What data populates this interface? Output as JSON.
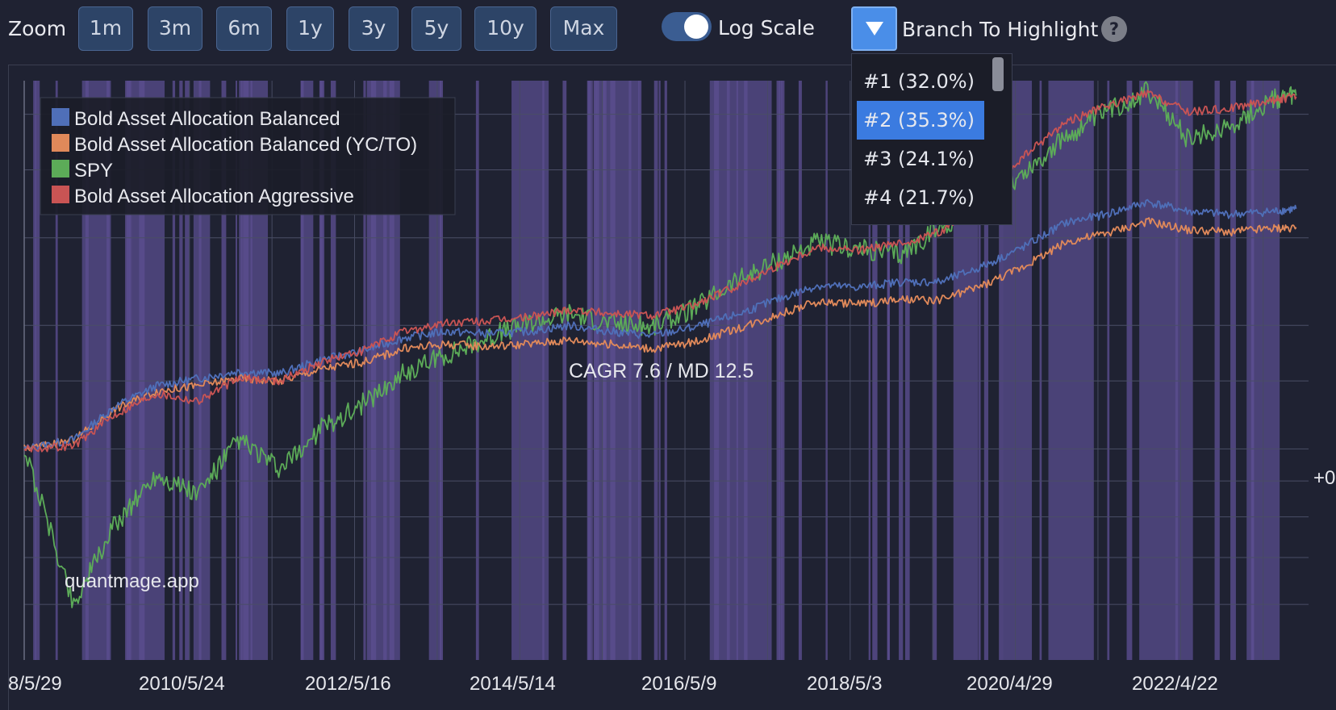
{
  "toolbar": {
    "zoom_label": "Zoom",
    "zoom_buttons": [
      "1m",
      "3m",
      "6m",
      "1y",
      "3y",
      "5y",
      "10y",
      "Max"
    ],
    "log_scale_label": "Log Scale",
    "log_scale_on": true,
    "branch_label": "Branch To Highlight",
    "help_text": "?"
  },
  "dropdown": {
    "items": [
      "#1 (32.0%)",
      "#2 (35.3%)",
      "#3 (24.1%)",
      "#4 (21.7%)"
    ],
    "selected": "#2 (35.3%)"
  },
  "watermark": "quantmage.app",
  "annotation": "CAGR 7.6 / MD 12.5",
  "right_edge_label": "+0",
  "colors": {
    "background": "#1f2232",
    "highlight": "#5a4d8f",
    "balanced": "#4f6fb8",
    "balanced_ycto": "#e0895a",
    "spy": "#5cab58",
    "aggressive": "#c95454"
  },
  "chart_data": {
    "type": "line",
    "y_scale": "log",
    "grid": true,
    "legend_placement": "top-left",
    "legend": [
      "Bold Asset Allocation Balanced",
      "Bold Asset Allocation Balanced (YC/TO)",
      "SPY",
      "Bold Asset Allocation Aggressive"
    ],
    "x_tick_labels": [
      "8/5/29",
      "2010/5/24",
      "2012/5/16",
      "2014/5/14",
      "2016/5/9",
      "2018/5/3",
      "2020/4/29",
      "2022/4/22"
    ],
    "x": [
      2008.4,
      2009.0,
      2009.5,
      2010.0,
      2010.5,
      2011.0,
      2011.5,
      2012.0,
      2012.5,
      2013.0,
      2013.5,
      2014.0,
      2014.5,
      2015.0,
      2015.5,
      2016.0,
      2016.5,
      2017.0,
      2017.5,
      2018.0,
      2018.5,
      2019.0,
      2019.5,
      2020.0,
      2020.5,
      2021.0,
      2021.5,
      2022.0,
      2022.5,
      2023.0,
      2023.5,
      2023.8
    ],
    "series": [
      {
        "name": "Bold Asset Allocation Balanced",
        "values": [
          1.0,
          1.03,
          1.15,
          1.23,
          1.26,
          1.29,
          1.28,
          1.34,
          1.38,
          1.44,
          1.47,
          1.46,
          1.47,
          1.5,
          1.47,
          1.45,
          1.49,
          1.55,
          1.63,
          1.71,
          1.7,
          1.73,
          1.73,
          1.82,
          1.94,
          2.1,
          2.16,
          2.25,
          2.18,
          2.16,
          2.18,
          2.2
        ]
      },
      {
        "name": "Bold Asset Allocation Balanced (YC/TO)",
        "values": [
          1.0,
          1.03,
          1.14,
          1.21,
          1.23,
          1.26,
          1.25,
          1.3,
          1.33,
          1.39,
          1.41,
          1.4,
          1.41,
          1.43,
          1.41,
          1.39,
          1.42,
          1.48,
          1.55,
          1.62,
          1.61,
          1.63,
          1.63,
          1.71,
          1.82,
          1.97,
          2.03,
          2.11,
          2.05,
          2.04,
          2.06,
          2.07
        ]
      },
      {
        "name": "SPY",
        "values": [
          1.0,
          0.6,
          0.78,
          0.92,
          0.86,
          1.03,
          0.93,
          1.07,
          1.16,
          1.28,
          1.36,
          1.44,
          1.51,
          1.56,
          1.51,
          1.49,
          1.58,
          1.73,
          1.85,
          1.97,
          1.93,
          1.89,
          2.07,
          2.22,
          2.47,
          2.78,
          3.03,
          3.23,
          2.75,
          2.9,
          3.14,
          3.19
        ]
      },
      {
        "name": "Bold Asset Allocation Aggressive",
        "values": [
          1.0,
          1.01,
          1.12,
          1.2,
          1.17,
          1.26,
          1.25,
          1.33,
          1.38,
          1.47,
          1.51,
          1.52,
          1.54,
          1.58,
          1.56,
          1.55,
          1.6,
          1.7,
          1.82,
          1.94,
          1.92,
          1.96,
          2.04,
          2.28,
          2.61,
          2.92,
          3.08,
          3.21,
          3.02,
          3.06,
          3.14,
          3.18
        ]
      }
    ],
    "highlight_periods": [
      [
        2009.1,
        2009.45
      ],
      [
        2009.7,
        2010.1
      ],
      [
        2010.45,
        2010.65
      ],
      [
        2011.0,
        2011.35
      ],
      [
        2011.75,
        2011.9
      ],
      [
        2012.6,
        2012.95
      ],
      [
        2013.3,
        2013.45
      ],
      [
        2014.3,
        2014.75
      ],
      [
        2015.3,
        2015.85
      ],
      [
        2016.7,
        2017.45
      ],
      [
        2019.65,
        2019.95
      ],
      [
        2020.25,
        2020.6
      ],
      [
        2020.8,
        2021.35
      ],
      [
        2021.9,
        2022.55
      ],
      [
        2023.2,
        2023.6
      ]
    ]
  }
}
